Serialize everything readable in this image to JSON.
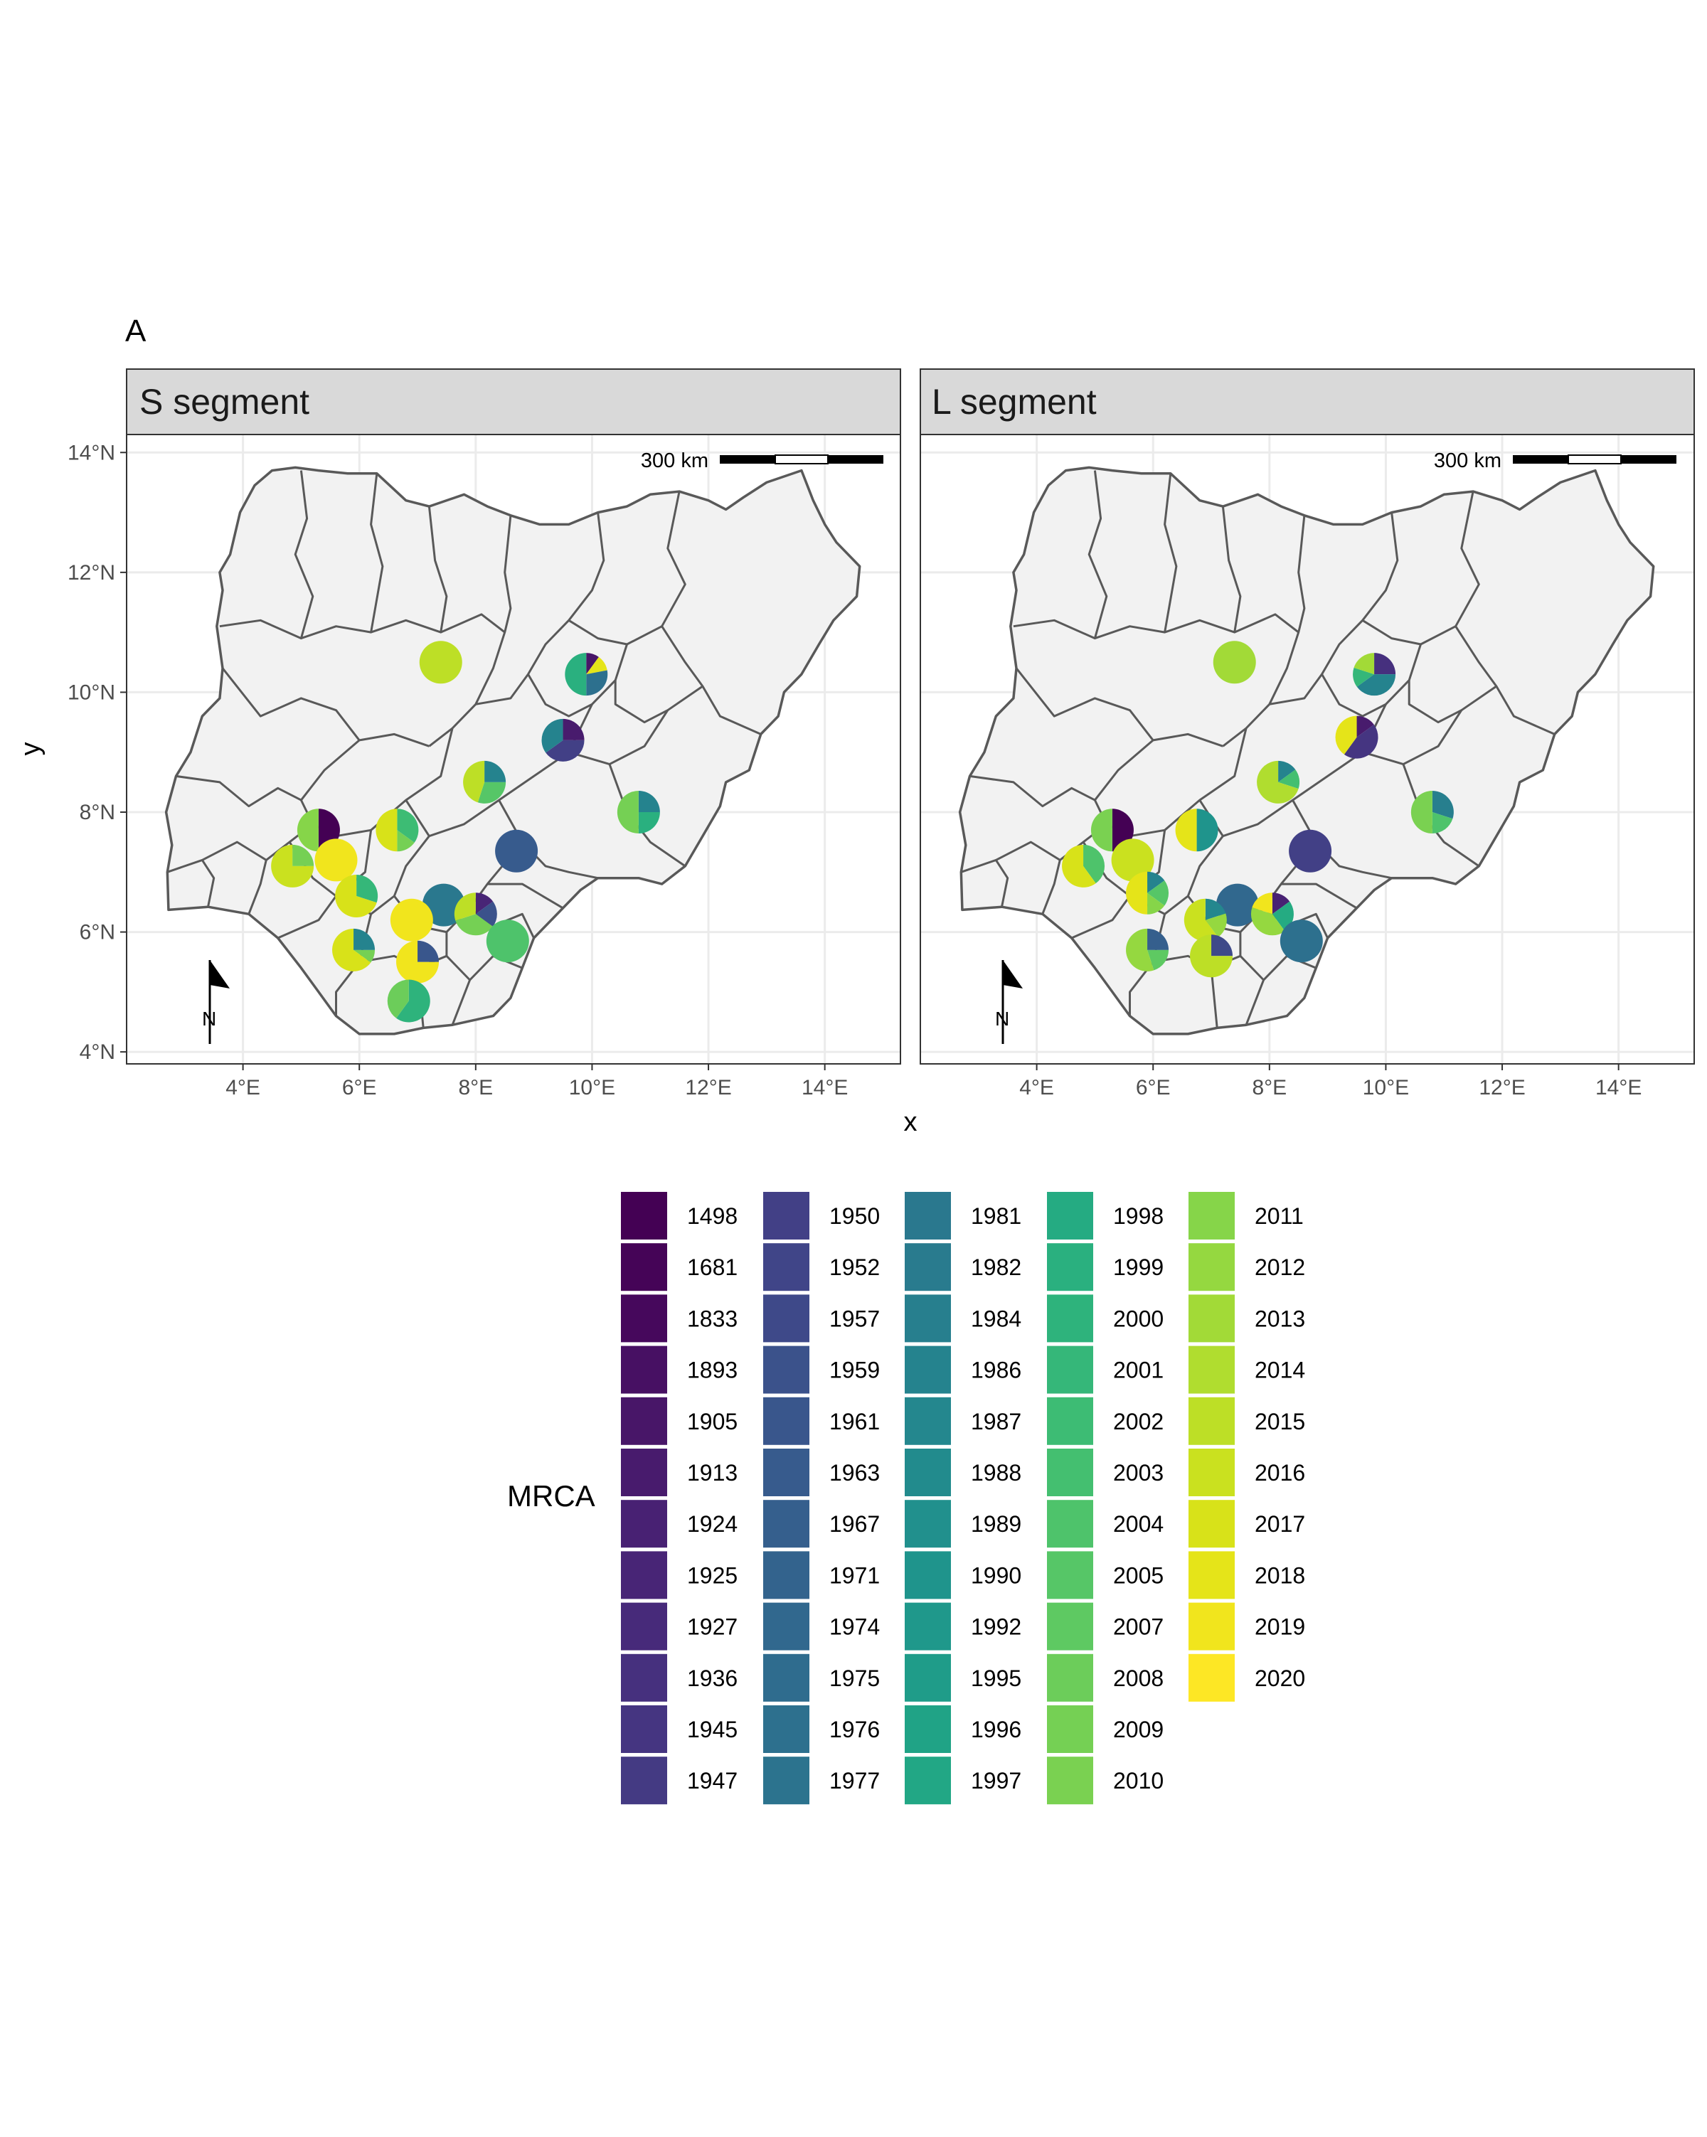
{
  "figure": {
    "tag": "A",
    "xlabel": "x",
    "ylabel": "y"
  },
  "panels": [
    {
      "title": "S segment",
      "scalebar_label": "300 km",
      "north_label": "N",
      "pies": [
        {
          "lon": 7.4,
          "lat": 10.5,
          "slices": [
            {
              "year": "2015",
              "frac": 1
            }
          ]
        },
        {
          "lon": 9.9,
          "lat": 10.3,
          "slices": [
            {
              "year": "1905",
              "frac": 0.1
            },
            {
              "year": "2018",
              "frac": 0.12
            },
            {
              "year": "1976",
              "frac": 0.28
            },
            {
              "year": "1999",
              "frac": 0.5
            }
          ]
        },
        {
          "lon": 9.5,
          "lat": 9.2,
          "slices": [
            {
              "year": "1913",
              "frac": 0.25
            },
            {
              "year": "1950",
              "frac": 0.4
            },
            {
              "year": "1986",
              "frac": 0.35
            }
          ]
        },
        {
          "lon": 8.15,
          "lat": 8.5,
          "slices": [
            {
              "year": "1986",
              "frac": 0.25
            },
            {
              "year": "2005",
              "frac": 0.3
            },
            {
              "year": "2015",
              "frac": 0.45
            }
          ]
        },
        {
          "lon": 10.8,
          "lat": 8.0,
          "slices": [
            {
              "year": "1986",
              "frac": 0.25
            },
            {
              "year": "1999",
              "frac": 0.25
            },
            {
              "year": "2009",
              "frac": 0.5
            }
          ]
        },
        {
          "lon": 5.3,
          "lat": 7.7,
          "slices": [
            {
              "year": "1498",
              "frac": 0.5
            },
            {
              "year": "2011",
              "frac": 0.5
            }
          ]
        },
        {
          "lon": 6.65,
          "lat": 7.7,
          "slices": [
            {
              "year": "2002",
              "frac": 0.35
            },
            {
              "year": "2009",
              "frac": 0.15
            },
            {
              "year": "2017",
              "frac": 0.5
            }
          ]
        },
        {
          "lon": 8.7,
          "lat": 7.35,
          "slices": [
            {
              "year": "1963",
              "frac": 1
            }
          ]
        },
        {
          "lon": 4.85,
          "lat": 7.1,
          "slices": [
            {
              "year": "2009",
              "frac": 0.25
            },
            {
              "year": "2016",
              "frac": 0.75
            }
          ]
        },
        {
          "lon": 5.6,
          "lat": 7.2,
          "slices": [
            {
              "year": "2019",
              "frac": 1
            }
          ]
        },
        {
          "lon": 5.95,
          "lat": 6.6,
          "slices": [
            {
              "year": "2001",
              "frac": 0.3
            },
            {
              "year": "2017",
              "frac": 0.7
            }
          ]
        },
        {
          "lon": 7.45,
          "lat": 6.45,
          "slices": [
            {
              "year": "1981",
              "frac": 1
            }
          ]
        },
        {
          "lon": 8.0,
          "lat": 6.3,
          "slices": [
            {
              "year": "1925",
              "frac": 0.15
            },
            {
              "year": "1959",
              "frac": 0.2
            },
            {
              "year": "2009",
              "frac": 0.35
            },
            {
              "year": "2015",
              "frac": 0.3
            }
          ]
        },
        {
          "lon": 6.9,
          "lat": 6.2,
          "slices": [
            {
              "year": "2019",
              "frac": 1
            }
          ]
        },
        {
          "lon": 5.9,
          "lat": 5.7,
          "slices": [
            {
              "year": "1986",
              "frac": 0.25
            },
            {
              "year": "2009",
              "frac": 0.1
            },
            {
              "year": "2017",
              "frac": 0.65
            }
          ]
        },
        {
          "lon": 7.0,
          "lat": 5.5,
          "slices": [
            {
              "year": "1961",
              "frac": 0.25
            },
            {
              "year": "2019",
              "frac": 0.75
            }
          ]
        },
        {
          "lon": 8.55,
          "lat": 5.85,
          "slices": [
            {
              "year": "2004",
              "frac": 1
            }
          ]
        },
        {
          "lon": 6.85,
          "lat": 4.85,
          "slices": [
            {
              "year": "2000",
              "frac": 0.6
            },
            {
              "year": "2008",
              "frac": 0.4
            }
          ]
        }
      ]
    },
    {
      "title": "L segment",
      "scalebar_label": "300 km",
      "north_label": "N",
      "pies": [
        {
          "lon": 7.4,
          "lat": 10.5,
          "slices": [
            {
              "year": "2013",
              "frac": 1
            }
          ]
        },
        {
          "lon": 9.8,
          "lat": 10.3,
          "slices": [
            {
              "year": "1936",
              "frac": 0.25
            },
            {
              "year": "1986",
              "frac": 0.4
            },
            {
              "year": "2001",
              "frac": 0.15
            },
            {
              "year": "2013",
              "frac": 0.2
            }
          ]
        },
        {
          "lon": 9.5,
          "lat": 9.25,
          "slices": [
            {
              "year": "1913",
              "frac": 0.15
            },
            {
              "year": "1945",
              "frac": 0.45
            },
            {
              "year": "2018",
              "frac": 0.4
            }
          ]
        },
        {
          "lon": 8.15,
          "lat": 8.5,
          "slices": [
            {
              "year": "1986",
              "frac": 0.15
            },
            {
              "year": "2003",
              "frac": 0.15
            },
            {
              "year": "2014",
              "frac": 0.7
            }
          ]
        },
        {
          "lon": 10.8,
          "lat": 8.0,
          "slices": [
            {
              "year": "1984",
              "frac": 0.3
            },
            {
              "year": "2004",
              "frac": 0.2
            },
            {
              "year": "2010",
              "frac": 0.5
            }
          ]
        },
        {
          "lon": 5.3,
          "lat": 7.7,
          "slices": [
            {
              "year": "1498",
              "frac": 0.5
            },
            {
              "year": "2010",
              "frac": 0.5
            }
          ]
        },
        {
          "lon": 6.75,
          "lat": 7.7,
          "slices": [
            {
              "year": "1990",
              "frac": 0.5
            },
            {
              "year": "2018",
              "frac": 0.5
            }
          ]
        },
        {
          "lon": 8.7,
          "lat": 7.35,
          "slices": [
            {
              "year": "1950",
              "frac": 1
            }
          ]
        },
        {
          "lon": 4.8,
          "lat": 7.1,
          "slices": [
            {
              "year": "2004",
              "frac": 0.4
            },
            {
              "year": "2017",
              "frac": 0.6
            }
          ]
        },
        {
          "lon": 5.65,
          "lat": 7.2,
          "slices": [
            {
              "year": "2016",
              "frac": 1
            }
          ]
        },
        {
          "lon": 5.9,
          "lat": 6.65,
          "slices": [
            {
              "year": "1986",
              "frac": 0.15
            },
            {
              "year": "2005",
              "frac": 0.2
            },
            {
              "year": "2011",
              "frac": 0.15
            },
            {
              "year": "2018",
              "frac": 0.5
            }
          ]
        },
        {
          "lon": 7.45,
          "lat": 6.45,
          "slices": [
            {
              "year": "1974",
              "frac": 1
            }
          ]
        },
        {
          "lon": 8.05,
          "lat": 6.3,
          "slices": [
            {
              "year": "1924",
              "frac": 0.15
            },
            {
              "year": "1998",
              "frac": 0.25
            },
            {
              "year": "2012",
              "frac": 0.4
            },
            {
              "year": "2019",
              "frac": 0.2
            }
          ]
        },
        {
          "lon": 6.9,
          "lat": 6.2,
          "slices": [
            {
              "year": "1987",
              "frac": 0.2
            },
            {
              "year": "2012",
              "frac": 0.2
            },
            {
              "year": "2016",
              "frac": 0.6
            }
          ]
        },
        {
          "lon": 5.9,
          "lat": 5.7,
          "slices": [
            {
              "year": "1967",
              "frac": 0.25
            },
            {
              "year": "2007",
              "frac": 0.2
            },
            {
              "year": "2012",
              "frac": 0.55
            }
          ]
        },
        {
          "lon": 7.0,
          "lat": 5.6,
          "slices": [
            {
              "year": "1957",
              "frac": 0.25
            },
            {
              "year": "2015",
              "frac": 0.75
            }
          ]
        },
        {
          "lon": 8.55,
          "lat": 5.85,
          "slices": [
            {
              "year": "1976",
              "frac": 1
            }
          ]
        }
      ]
    }
  ],
  "axes": {
    "x_ticks": [
      "4°E",
      "6°E",
      "8°E",
      "10°E",
      "12°E",
      "14°E"
    ],
    "x_tick_values": [
      4,
      6,
      8,
      10,
      12,
      14
    ],
    "y_ticks": [
      "14°N",
      "12°N",
      "10°N",
      "8°N",
      "6°N",
      "4°N"
    ],
    "y_tick_values": [
      14,
      12,
      10,
      8,
      6,
      4
    ],
    "xlim": [
      2.0,
      15.3
    ],
    "ylim": [
      3.8,
      14.3
    ]
  },
  "legend": {
    "title": "MRCA",
    "columns": [
      [
        {
          "year": "1498",
          "color": "#440154"
        },
        {
          "year": "1681",
          "color": "#450457"
        },
        {
          "year": "1833",
          "color": "#46085c"
        },
        {
          "year": "1893",
          "color": "#471063"
        },
        {
          "year": "1905",
          "color": "#481668"
        },
        {
          "year": "1913",
          "color": "#481b6d"
        },
        {
          "year": "1924",
          "color": "#482173"
        },
        {
          "year": "1925",
          "color": "#482576"
        },
        {
          "year": "1927",
          "color": "#472a7a"
        },
        {
          "year": "1936",
          "color": "#46307e"
        },
        {
          "year": "1945",
          "color": "#453581"
        },
        {
          "year": "1947",
          "color": "#443a83"
        }
      ],
      [
        {
          "year": "1950",
          "color": "#424086"
        },
        {
          "year": "1952",
          "color": "#404588"
        },
        {
          "year": "1957",
          "color": "#3e4989"
        },
        {
          "year": "1959",
          "color": "#3b528b"
        },
        {
          "year": "1961",
          "color": "#39568c"
        },
        {
          "year": "1963",
          "color": "#375b8d"
        },
        {
          "year": "1967",
          "color": "#355f8d"
        },
        {
          "year": "1971",
          "color": "#33638d"
        },
        {
          "year": "1974",
          "color": "#31688e"
        },
        {
          "year": "1975",
          "color": "#2f6c8e"
        },
        {
          "year": "1976",
          "color": "#2d708e"
        },
        {
          "year": "1977",
          "color": "#2c738e"
        }
      ],
      [
        {
          "year": "1981",
          "color": "#2a788e"
        },
        {
          "year": "1982",
          "color": "#297b8e"
        },
        {
          "year": "1984",
          "color": "#277f8e"
        },
        {
          "year": "1986",
          "color": "#25838e"
        },
        {
          "year": "1987",
          "color": "#24878e"
        },
        {
          "year": "1988",
          "color": "#228b8d"
        },
        {
          "year": "1989",
          "color": "#21908d"
        },
        {
          "year": "1990",
          "color": "#1f948c"
        },
        {
          "year": "1992",
          "color": "#1f988b"
        },
        {
          "year": "1995",
          "color": "#1f9c89"
        },
        {
          "year": "1996",
          "color": "#20a386"
        },
        {
          "year": "1997",
          "color": "#22a785"
        }
      ],
      [
        {
          "year": "1998",
          "color": "#25ab82"
        },
        {
          "year": "1999",
          "color": "#2ab07f"
        },
        {
          "year": "2000",
          "color": "#2eb37c"
        },
        {
          "year": "2001",
          "color": "#35b779"
        },
        {
          "year": "2002",
          "color": "#3dbc74"
        },
        {
          "year": "2003",
          "color": "#44bf70"
        },
        {
          "year": "2004",
          "color": "#4ec36b"
        },
        {
          "year": "2005",
          "color": "#56c667"
        },
        {
          "year": "2007",
          "color": "#5ec962"
        },
        {
          "year": "2008",
          "color": "#6ccd5a"
        },
        {
          "year": "2009",
          "color": "#75d054"
        },
        {
          "year": "2010",
          "color": "#7ad151"
        }
      ],
      [
        {
          "year": "2011",
          "color": "#86d549"
        },
        {
          "year": "2012",
          "color": "#95d840"
        },
        {
          "year": "2013",
          "color": "#a2da37"
        },
        {
          "year": "2014",
          "color": "#b0dd2f"
        },
        {
          "year": "2015",
          "color": "#bddf26"
        },
        {
          "year": "2016",
          "color": "#cae11f"
        },
        {
          "year": "2017",
          "color": "#d8e219"
        },
        {
          "year": "2018",
          "color": "#e5e419"
        },
        {
          "year": "2019",
          "color": "#f1e51d"
        },
        {
          "year": "2020",
          "color": "#fde725"
        }
      ]
    ]
  },
  "style_colors": {
    "strip_fill": "#d9d9d9",
    "land_fill": "#f2f2f2",
    "border_stroke": "#595959",
    "grid": "#ebebeb",
    "frame": "#333333"
  }
}
